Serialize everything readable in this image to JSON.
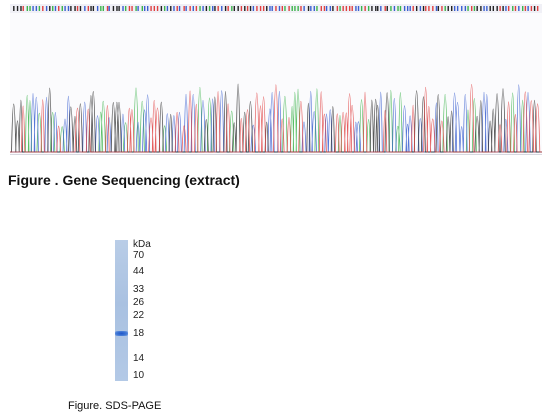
{
  "figure1": {
    "caption": "Figure . Gene Sequencing (extract)",
    "base_colors": {
      "A": "#3cb44b",
      "C": "#3a5fd0",
      "G": "#222222",
      "T": "#e04040"
    },
    "peak_count": 165
  },
  "figure2": {
    "caption": "Figure. SDS-PAGE",
    "unit": "kDa",
    "markers": [
      {
        "label": "70"
      },
      {
        "label": "44"
      },
      {
        "label": "33"
      },
      {
        "label": "26"
      },
      {
        "label": "22"
      },
      {
        "label": "18"
      },
      {
        "label": "14"
      },
      {
        "label": "10"
      }
    ],
    "band_marker": "18",
    "gel_color": "#b3c9e6",
    "band_color": "#2a5fcc"
  }
}
